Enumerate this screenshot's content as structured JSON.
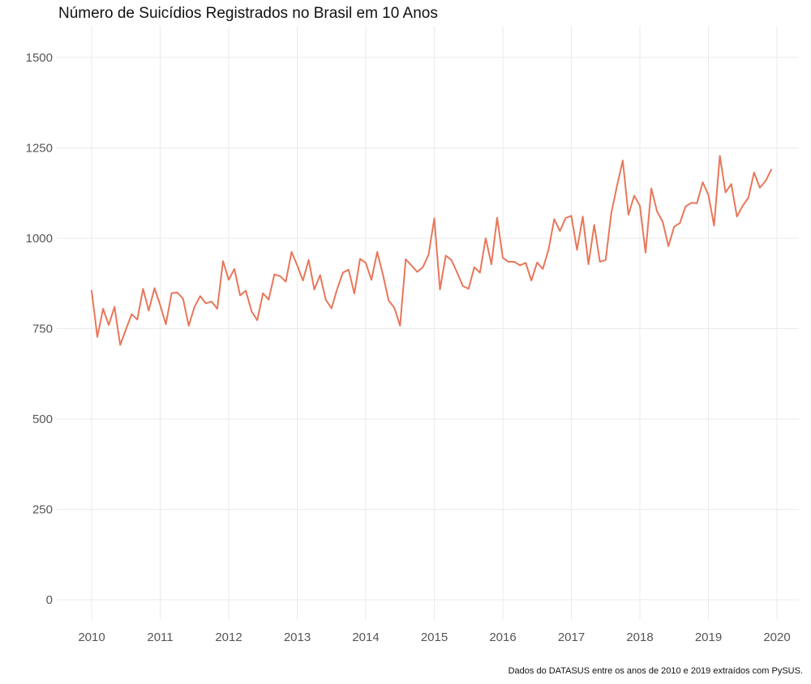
{
  "chart_data": {
    "type": "line",
    "title": "Número de Suicídios Registrados no Brasil em 10 Anos",
    "caption": "Dados do DATASUS entre os anos de 2010 e 2019 extraídos com PySUS.",
    "xlabel": "",
    "ylabel": "",
    "x_ticks": [
      "2010",
      "2011",
      "2012",
      "2013",
      "2014",
      "2015",
      "2016",
      "2017",
      "2018",
      "2019",
      "2020"
    ],
    "y_ticks": [
      "0",
      "250",
      "500",
      "750",
      "1000",
      "1250",
      "1500"
    ],
    "xlim": [
      2010,
      2020
    ],
    "ylim": [
      0,
      1500
    ],
    "grid": true,
    "series": [
      {
        "color": "#E8775A",
        "x": [
          "2010-01",
          "2010-02",
          "2010-03",
          "2010-04",
          "2010-05",
          "2010-06",
          "2010-07",
          "2010-08",
          "2010-09",
          "2010-10",
          "2010-11",
          "2010-12",
          "2011-01",
          "2011-02",
          "2011-03",
          "2011-04",
          "2011-05",
          "2011-06",
          "2011-07",
          "2011-08",
          "2011-09",
          "2011-10",
          "2011-11",
          "2011-12",
          "2012-01",
          "2012-02",
          "2012-03",
          "2012-04",
          "2012-05",
          "2012-06",
          "2012-07",
          "2012-08",
          "2012-09",
          "2012-10",
          "2012-11",
          "2012-12",
          "2013-01",
          "2013-02",
          "2013-03",
          "2013-04",
          "2013-05",
          "2013-06",
          "2013-07",
          "2013-08",
          "2013-09",
          "2013-10",
          "2013-11",
          "2013-12",
          "2014-01",
          "2014-02",
          "2014-03",
          "2014-04",
          "2014-05",
          "2014-06",
          "2014-07",
          "2014-08",
          "2014-09",
          "2014-10",
          "2014-11",
          "2014-12",
          "2015-01",
          "2015-02",
          "2015-03",
          "2015-04",
          "2015-05",
          "2015-06",
          "2015-07",
          "2015-08",
          "2015-09",
          "2015-10",
          "2015-11",
          "2015-12",
          "2016-01",
          "2016-02",
          "2016-03",
          "2016-04",
          "2016-05",
          "2016-06",
          "2016-07",
          "2016-08",
          "2016-09",
          "2016-10",
          "2016-11",
          "2016-12",
          "2017-01",
          "2017-02",
          "2017-03",
          "2017-04",
          "2017-05",
          "2017-06",
          "2017-07",
          "2017-08",
          "2017-09",
          "2017-10",
          "2017-11",
          "2017-12",
          "2018-01",
          "2018-02",
          "2018-03",
          "2018-04",
          "2018-05",
          "2018-06",
          "2018-07",
          "2018-08",
          "2018-09",
          "2018-10",
          "2018-11",
          "2018-12",
          "2019-01",
          "2019-02",
          "2019-03",
          "2019-04",
          "2019-05",
          "2019-06",
          "2019-07",
          "2019-08",
          "2019-09",
          "2019-10",
          "2019-11",
          "2019-12"
        ],
        "values": [
          855,
          727,
          805,
          760,
          810,
          705,
          748,
          790,
          775,
          860,
          800,
          862,
          815,
          762,
          848,
          850,
          833,
          758,
          810,
          840,
          820,
          825,
          805,
          937,
          885,
          915,
          842,
          855,
          798,
          773,
          848,
          830,
          900,
          895,
          880,
          962,
          925,
          883,
          940,
          858,
          898,
          830,
          806,
          860,
          905,
          913,
          847,
          943,
          932,
          885,
          962,
          900,
          828,
          808,
          758,
          942,
          925,
          907,
          920,
          955,
          1055,
          858,
          952,
          940,
          905,
          868,
          860,
          920,
          905,
          1000,
          928,
          1057,
          946,
          935,
          935,
          925,
          932,
          883,
          933,
          915,
          968,
          1053,
          1020,
          1056,
          1062,
          968,
          1060,
          928,
          1037,
          935,
          940,
          1070,
          1145,
          1215,
          1065,
          1118,
          1090,
          960,
          1138,
          1075,
          1045,
          978,
          1032,
          1042,
          1088,
          1098,
          1097,
          1155,
          1120,
          1035,
          1228,
          1127,
          1150,
          1060,
          1090,
          1112,
          1182,
          1140,
          1158,
          1190
        ]
      }
    ]
  }
}
